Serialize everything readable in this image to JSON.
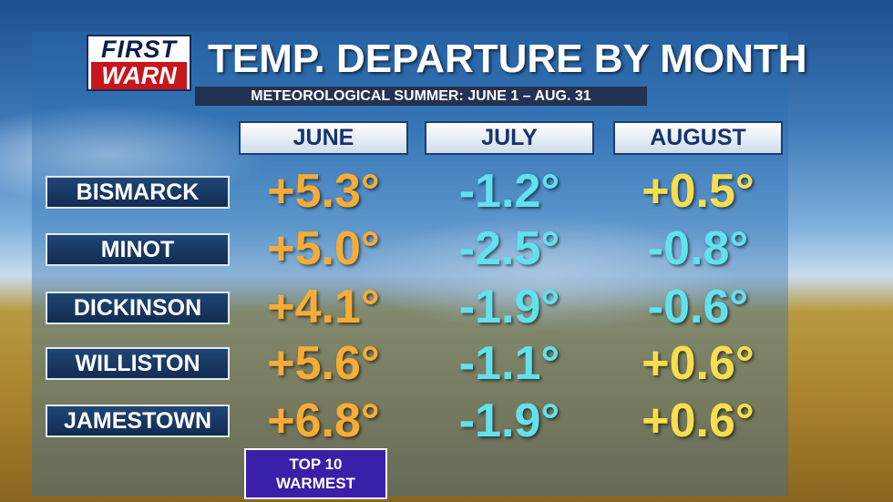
{
  "logo": {
    "line1": "FIRST",
    "line2": "WARN"
  },
  "header": {
    "title": "TEMP. DEPARTURE BY MONTH",
    "subtitle": "METEOROLOGICAL SUMMER: JUNE 1 – AUG. 31"
  },
  "table": {
    "columns": [
      "JUNE",
      "JULY",
      "AUGUST"
    ],
    "rows": [
      {
        "label": "BISMARCK",
        "values": [
          "+5.3°",
          "-1.2°",
          "+0.5°"
        ]
      },
      {
        "label": "MINOT",
        "values": [
          "+5.0°",
          "-2.5°",
          "-0.8°"
        ]
      },
      {
        "label": "DICKINSON",
        "values": [
          "+4.1°",
          "-1.9°",
          "-0.6°"
        ]
      },
      {
        "label": "WILLISTON",
        "values": [
          "+5.6°",
          "-1.1°",
          "+0.6°"
        ]
      },
      {
        "label": "JAMESTOWN",
        "values": [
          "+6.8°",
          "-1.9°",
          "+0.6°"
        ]
      }
    ]
  },
  "badge": {
    "lines": [
      "TOP 10",
      "WARMEST"
    ]
  }
}
